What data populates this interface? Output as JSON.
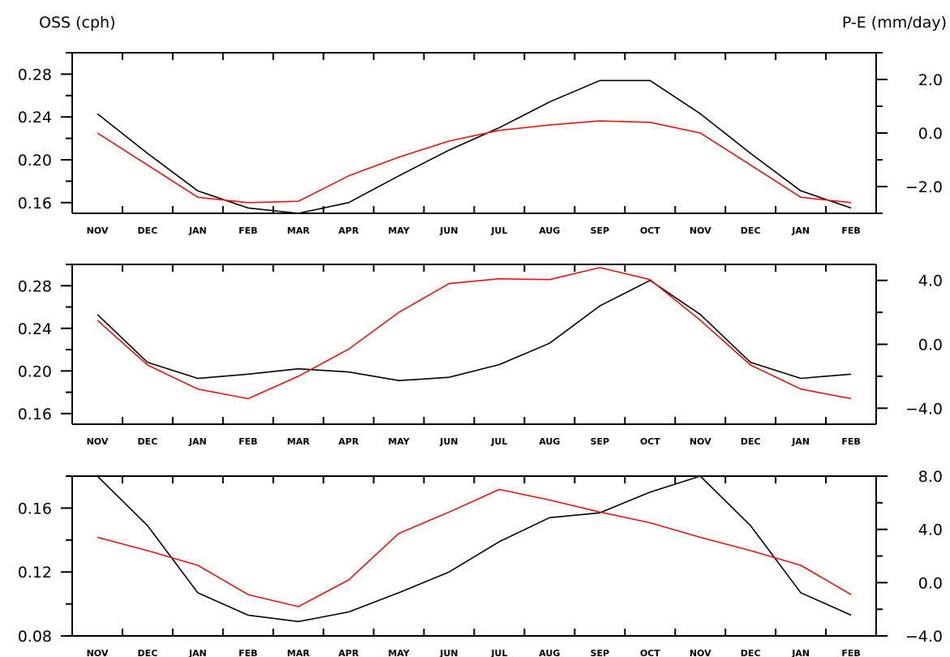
{
  "header": {
    "left_label": "OSS (cph)",
    "right_label": "P-E (mm/day)"
  },
  "colors": {
    "oss_line": "#000000",
    "pe_line": "#e8140f",
    "axes": "#000000"
  },
  "chart_data": [
    {
      "type": "line",
      "categories": [
        "NOV",
        "DEC",
        "JAN",
        "FEB",
        "MAR",
        "APR",
        "MAY",
        "JUN",
        "JUL",
        "AUG",
        "SEP",
        "OCT",
        "NOV",
        "DEC",
        "JAN",
        "FEB"
      ],
      "left_axis": {
        "label": "OSS (cph)",
        "ylim": [
          0.15,
          0.3
        ],
        "ticks": [
          0.16,
          0.2,
          0.24,
          0.28
        ],
        "tick_labels": [
          "0.16",
          "0.20",
          "0.24",
          "0.28"
        ]
      },
      "right_axis": {
        "label": "P-E (mm/day)",
        "ylim": [
          -3.0,
          3.0
        ],
        "ticks": [
          -2.0,
          0.0,
          2.0
        ],
        "tick_labels": [
          "−2.0",
          "0.0",
          "2.0"
        ]
      },
      "series": [
        {
          "axis": "left",
          "color": "#000000",
          "values": [
            0.243,
            0.206,
            0.171,
            0.155,
            0.15,
            0.16,
            0.185,
            0.209,
            0.23,
            0.254,
            0.274,
            0.274,
            0.243,
            0.206,
            0.171,
            0.155
          ]
        },
        {
          "axis": "right",
          "color": "#e8140f",
          "values": [
            0.0,
            -1.2,
            -2.4,
            -2.6,
            -2.55,
            -1.6,
            -0.9,
            -0.3,
            0.1,
            0.3,
            0.45,
            0.4,
            0.0,
            -1.2,
            -2.4,
            -2.6
          ]
        }
      ]
    },
    {
      "type": "line",
      "categories": [
        "NOV",
        "DEC",
        "JAN",
        "FEB",
        "MAR",
        "APR",
        "MAY",
        "JUN",
        "JUL",
        "AUG",
        "SEP",
        "OCT",
        "NOV",
        "DEC",
        "JAN",
        "FEB"
      ],
      "left_axis": {
        "label": "OSS (cph)",
        "ylim": [
          0.15,
          0.3
        ],
        "ticks": [
          0.16,
          0.2,
          0.24,
          0.28
        ],
        "tick_labels": [
          "0.16",
          "0.20",
          "0.24",
          "0.28"
        ]
      },
      "right_axis": {
        "label": "P-E (mm/day)",
        "ylim": [
          -5.0,
          5.0
        ],
        "ticks": [
          -4.0,
          0.0,
          4.0
        ],
        "tick_labels": [
          "−4.0",
          "0.0",
          "4.0"
        ]
      },
      "series": [
        {
          "axis": "left",
          "color": "#000000",
          "values": [
            0.253,
            0.208,
            0.193,
            0.197,
            0.202,
            0.199,
            0.191,
            0.194,
            0.206,
            0.226,
            0.261,
            0.285,
            0.253,
            0.208,
            0.193,
            0.197
          ]
        },
        {
          "axis": "right",
          "color": "#e8140f",
          "values": [
            1.5,
            -1.3,
            -2.8,
            -3.4,
            -2.0,
            -0.3,
            2.0,
            3.8,
            4.1,
            4.05,
            4.8,
            4.05,
            1.5,
            -1.3,
            -2.8,
            -3.4
          ]
        }
      ]
    },
    {
      "type": "line",
      "categories": [
        "NOV",
        "DEC",
        "JAN",
        "FEB",
        "MAR",
        "APR",
        "MAY",
        "JUN",
        "JUL",
        "AUG",
        "SEP",
        "OCT",
        "NOV",
        "DEC",
        "JAN",
        "FEB"
      ],
      "left_axis": {
        "label": "OSS (cph)",
        "ylim": [
          0.08,
          0.18
        ],
        "ticks": [
          0.08,
          0.12,
          0.16
        ],
        "tick_labels": [
          "0.08",
          "0.12",
          "0.16"
        ]
      },
      "right_axis": {
        "label": "P-E (mm/day)",
        "ylim": [
          -4.0,
          8.0
        ],
        "ticks": [
          -4.0,
          0.0,
          4.0,
          8.0
        ],
        "tick_labels": [
          "−4.0",
          "0.0",
          "4.0",
          "8.0"
        ]
      },
      "series": [
        {
          "axis": "left",
          "color": "#000000",
          "values": [
            0.18,
            0.149,
            0.107,
            0.093,
            0.089,
            0.095,
            0.107,
            0.12,
            0.139,
            0.154,
            0.157,
            0.17,
            0.18,
            0.149,
            0.107,
            0.093
          ]
        },
        {
          "axis": "right",
          "color": "#e8140f",
          "values": [
            3.4,
            2.4,
            1.3,
            -0.9,
            -1.8,
            0.2,
            3.7,
            5.3,
            7.0,
            6.2,
            5.3,
            4.5,
            3.4,
            2.4,
            1.3,
            -0.9
          ]
        }
      ]
    }
  ]
}
